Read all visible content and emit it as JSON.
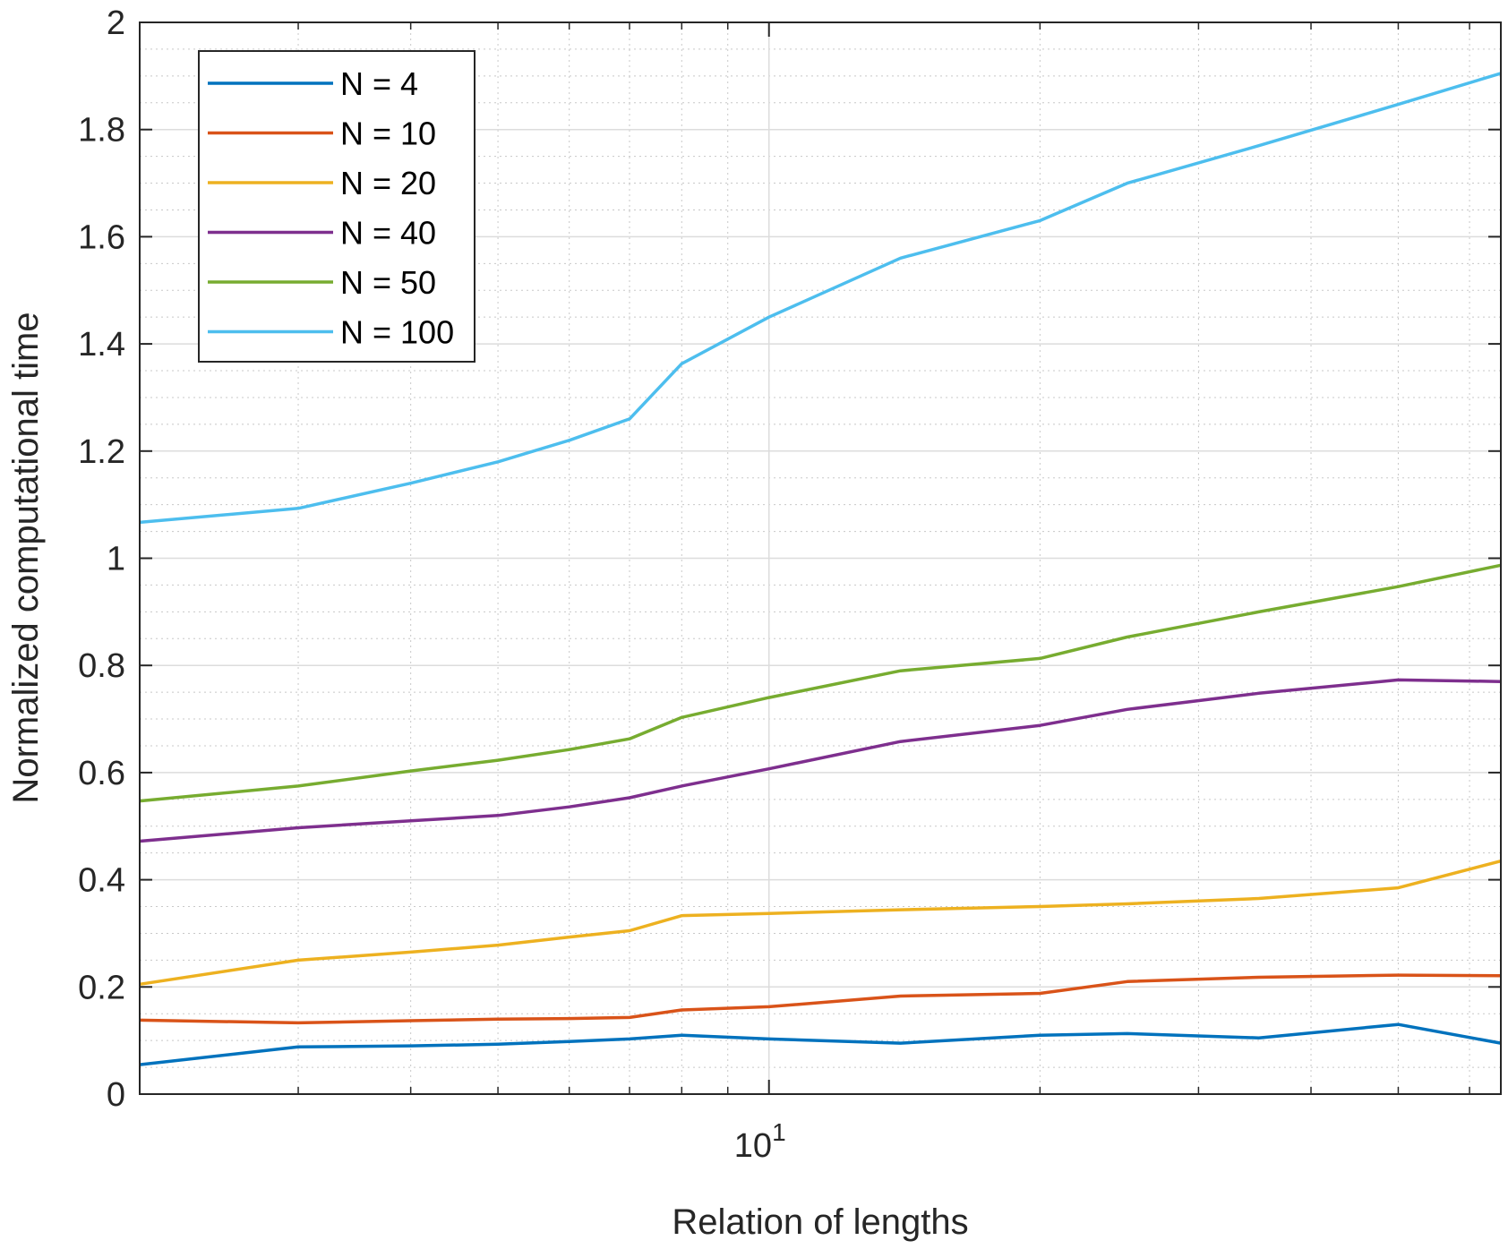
{
  "chart_data": {
    "type": "line",
    "title": "",
    "xlabel": "Relation of lengths",
    "ylabel": "Normalized computational time",
    "xscale": "log",
    "xlim": [
      2,
      65
    ],
    "ylim": [
      0,
      2
    ],
    "yticks": [
      0,
      0.2,
      0.4,
      0.6,
      0.8,
      1,
      1.2,
      1.4,
      1.6,
      1.8,
      2
    ],
    "ytick_labels": [
      "0",
      "0.2",
      "0.4",
      "0.6",
      "0.8",
      "1",
      "1.2",
      "1.4",
      "1.6",
      "1.8",
      "2"
    ],
    "xtick_major": {
      "value": 10,
      "base": "10",
      "exponent": "1"
    },
    "x": [
      2,
      3,
      4,
      5,
      6,
      7,
      8,
      10,
      14,
      20,
      25,
      35,
      50,
      65
    ],
    "grid": true,
    "legend_position": "top-left",
    "series": [
      {
        "name": "N = 4",
        "color": "#0072BD",
        "values": [
          0.055,
          0.088,
          0.09,
          0.093,
          0.098,
          0.103,
          0.11,
          0.103,
          0.095,
          0.11,
          0.113,
          0.105,
          0.13,
          0.095
        ]
      },
      {
        "name": "N = 10",
        "color": "#D95319",
        "values": [
          0.138,
          0.133,
          0.137,
          0.14,
          0.141,
          0.143,
          0.157,
          0.163,
          0.183,
          0.188,
          0.21,
          0.218,
          0.222,
          0.221
        ]
      },
      {
        "name": "N = 20",
        "color": "#EDB120",
        "values": [
          0.205,
          0.25,
          0.265,
          0.278,
          0.293,
          0.305,
          0.333,
          0.337,
          0.344,
          0.35,
          0.355,
          0.365,
          0.385,
          0.435
        ]
      },
      {
        "name": "N = 40",
        "color": "#7E2F8E",
        "values": [
          0.472,
          0.497,
          0.51,
          0.52,
          0.536,
          0.553,
          0.575,
          0.607,
          0.658,
          0.688,
          0.718,
          0.748,
          0.773,
          0.77
        ]
      },
      {
        "name": "N = 50",
        "color": "#77AC30",
        "values": [
          0.547,
          0.575,
          0.603,
          0.623,
          0.643,
          0.663,
          0.703,
          0.74,
          0.79,
          0.813,
          0.853,
          0.9,
          0.947,
          0.987
        ]
      },
      {
        "name": "N = 100",
        "color": "#4DBEEE",
        "values": [
          1.067,
          1.093,
          1.14,
          1.18,
          1.22,
          1.26,
          1.363,
          1.45,
          1.56,
          1.63,
          1.7,
          1.77,
          1.847,
          1.905
        ]
      }
    ]
  }
}
